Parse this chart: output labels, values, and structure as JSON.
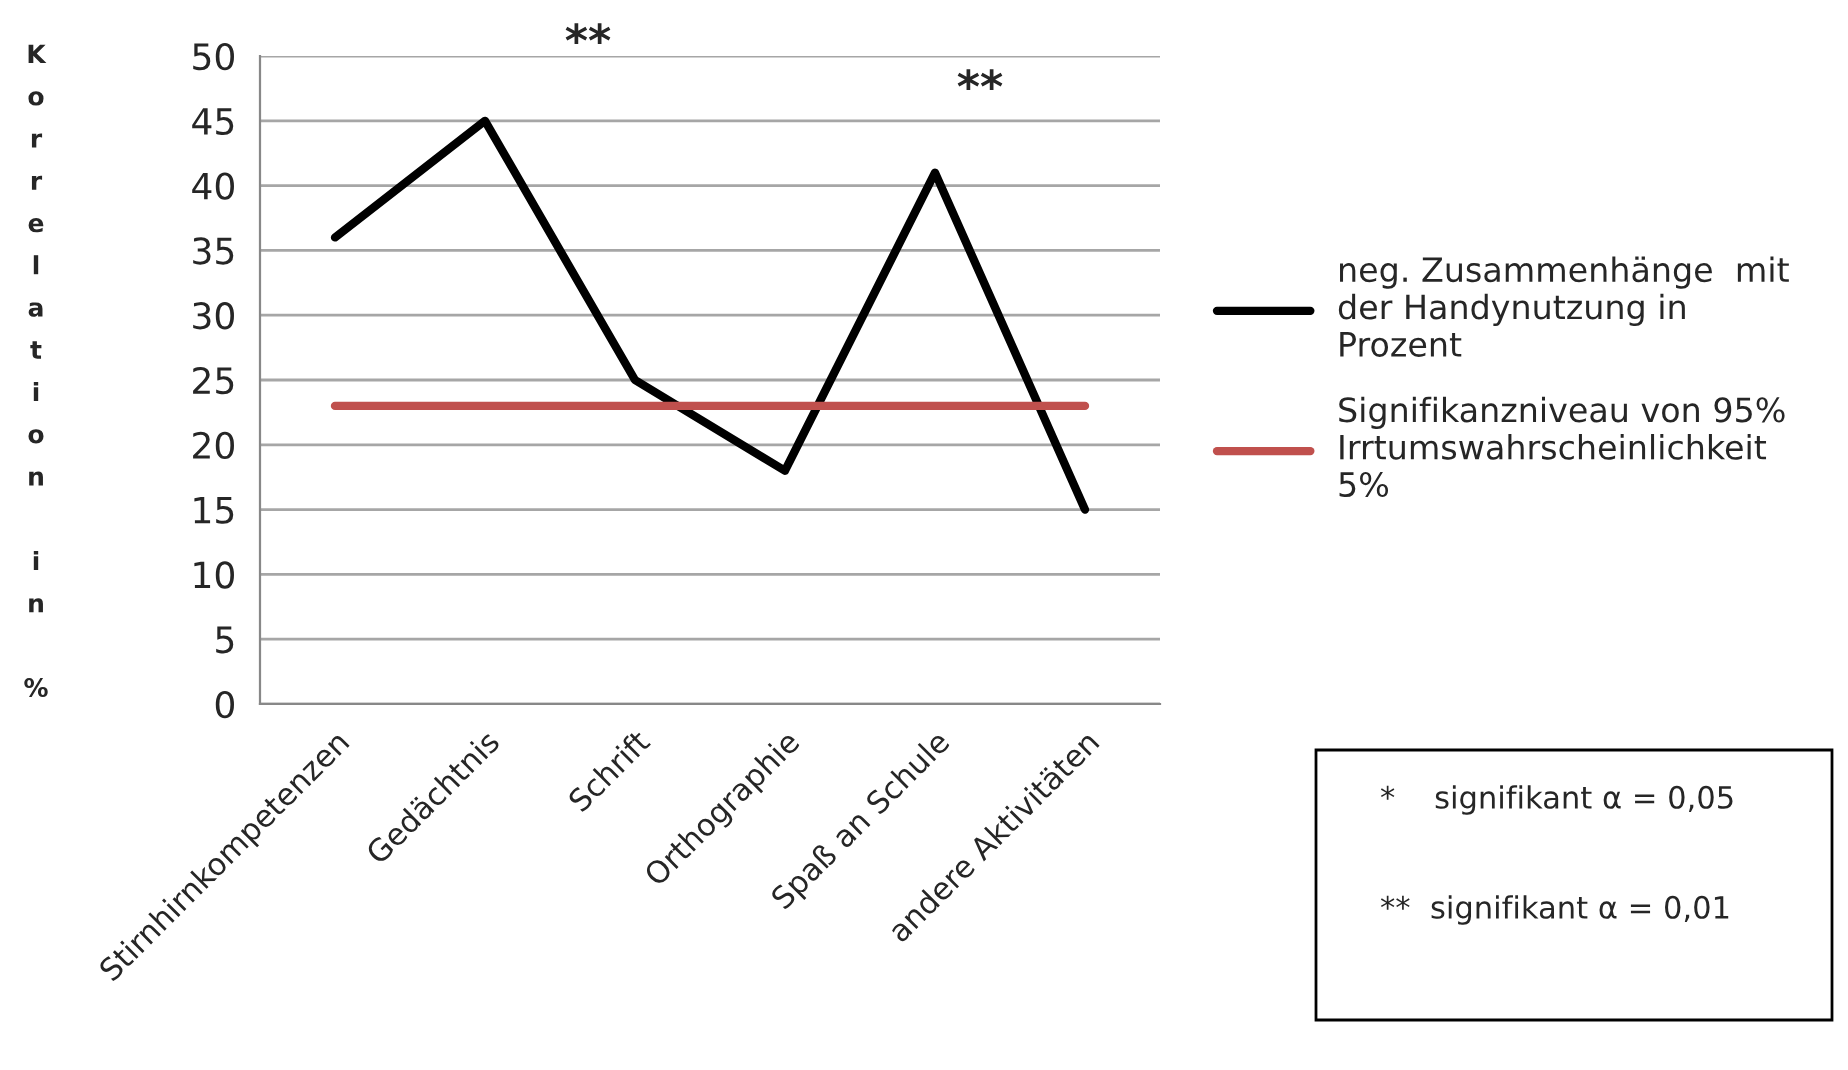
{
  "chart_data": {
    "type": "line",
    "categories": [
      "Stirnhirnkompetenzen",
      "Gedächtnis",
      "Schrift",
      "Orthographie",
      "Spaß an Schule",
      "andere Aktivitäten"
    ],
    "series": [
      {
        "name": "neg. Zusammenhänge  mit der Handynutzung in Prozent",
        "color": "#000000",
        "values": [
          36,
          45,
          25,
          18,
          41,
          15
        ]
      },
      {
        "name": "Signifikanzniveau von 95% Irrtumswahrscheinlichkeit 5%",
        "color": "#c0504d",
        "values": [
          23,
          23,
          23,
          23,
          23,
          23
        ]
      }
    ],
    "ylabel": "Korrelation in %",
    "ylim": [
      0,
      50
    ],
    "yticks": [
      0,
      5,
      10,
      15,
      20,
      25,
      30,
      35,
      40,
      45,
      50
    ],
    "grid": "y",
    "legend": "right",
    "marker": "none",
    "line_style": "solid",
    "annotations": [
      "**",
      "**",
      "*    signifikant α = 0,05",
      "**  signifikant α = 0,01"
    ]
  }
}
